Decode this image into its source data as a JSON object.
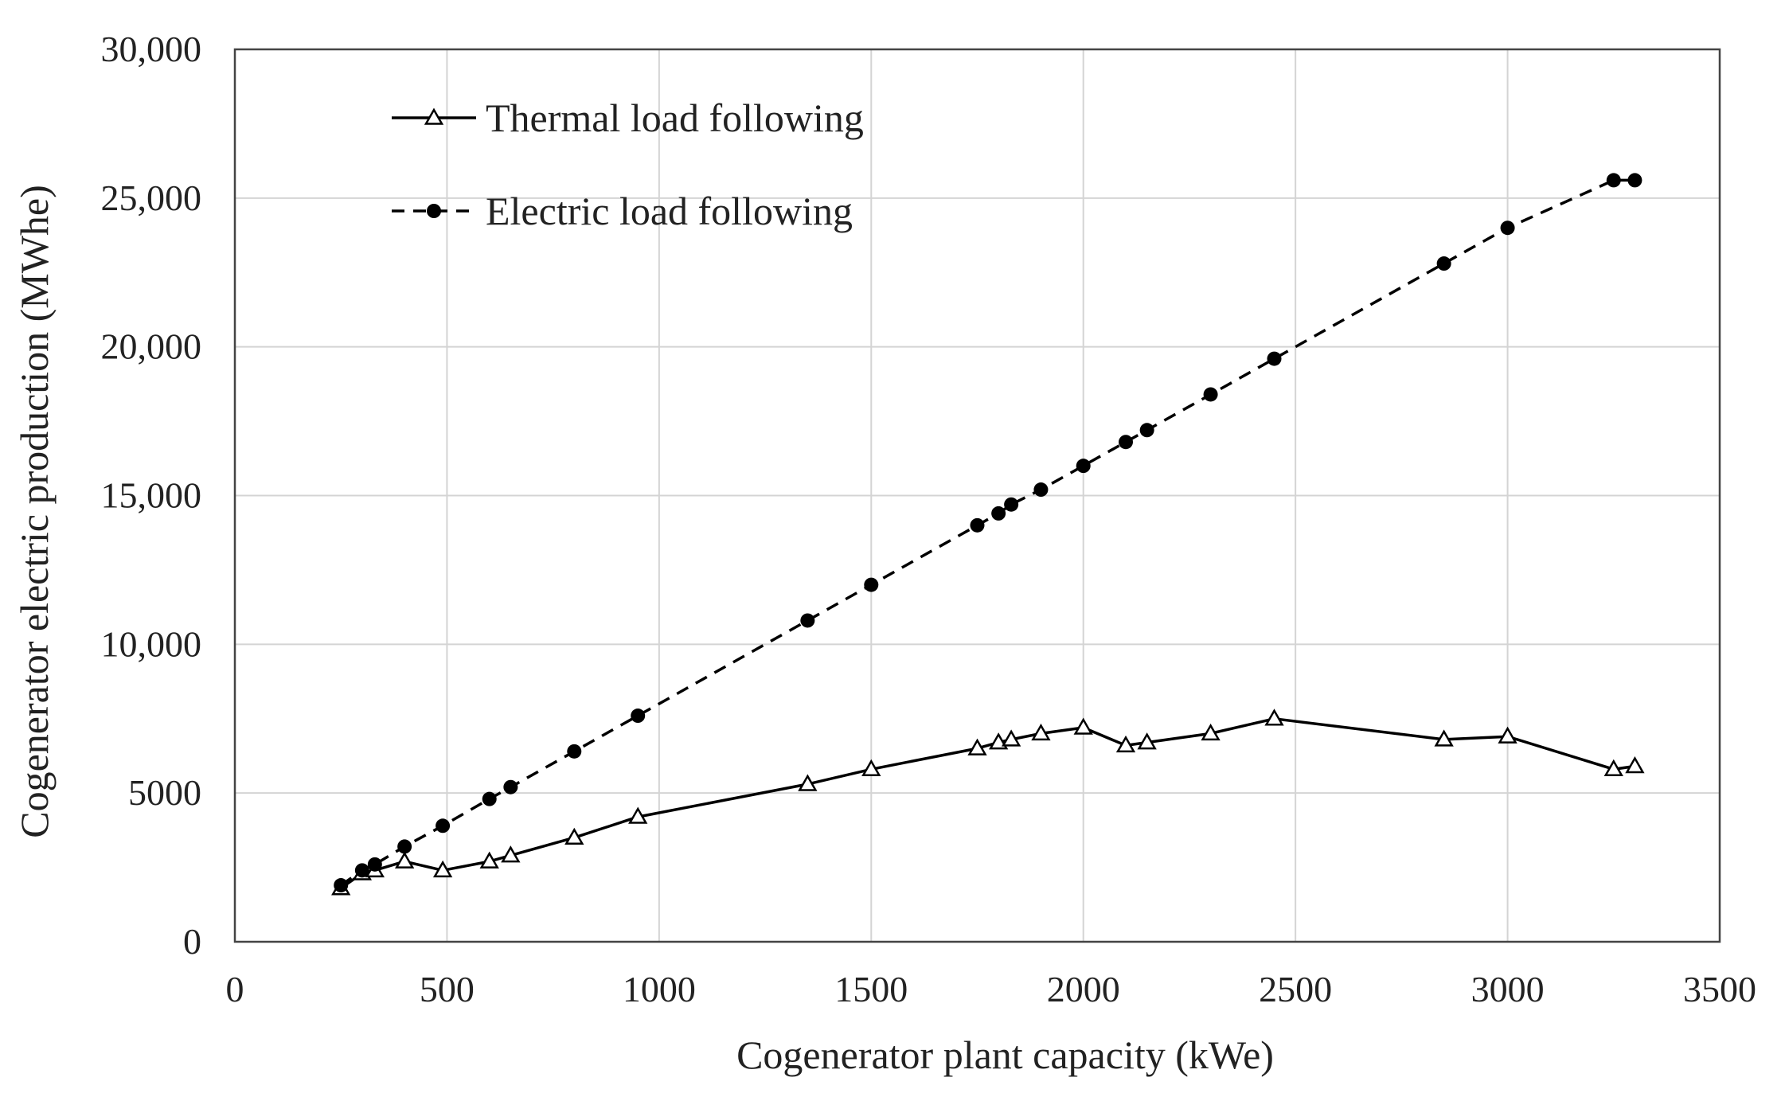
{
  "chart_data": {
    "type": "line",
    "title": "",
    "xlabel": "Cogenerator plant capacity (kWe)",
    "ylabel": "Cogenerator electric production (MWhe)",
    "xlim": [
      0,
      3500
    ],
    "ylim": [
      0,
      30000
    ],
    "grid": true,
    "legend_position": "top-left",
    "x_ticks": [
      0,
      500,
      1000,
      1500,
      2000,
      2500,
      3000,
      3500
    ],
    "x_tick_labels": [
      "0",
      "500",
      "1000",
      "1500",
      "2000",
      "2500",
      "3000",
      "3500"
    ],
    "y_ticks": [
      0,
      5000,
      10000,
      15000,
      20000,
      25000,
      30000
    ],
    "y_tick_labels": [
      "0",
      "5000",
      "10,000",
      "15,000",
      "20,000",
      "25,000",
      "30,000"
    ],
    "series": [
      {
        "name": "Thermal load following",
        "line_style": "solid",
        "marker": "open-triangle",
        "color": "#000000",
        "x": [
          250,
          300,
          330,
          400,
          490,
          600,
          650,
          800,
          950,
          1350,
          1500,
          1750,
          1800,
          1830,
          1900,
          2000,
          2100,
          2150,
          2300,
          2450,
          2850,
          3000,
          3250,
          3300
        ],
        "values": [
          1800,
          2300,
          2400,
          2700,
          2400,
          2700,
          2900,
          3500,
          4200,
          5300,
          5800,
          6500,
          6700,
          6800,
          7000,
          7200,
          6600,
          6700,
          7000,
          7500,
          6800,
          6900,
          5800,
          5900
        ]
      },
      {
        "name": "Electric load following",
        "line_style": "dashed",
        "marker": "filled-circle",
        "color": "#000000",
        "x": [
          250,
          300,
          330,
          400,
          490,
          600,
          650,
          800,
          950,
          1350,
          1500,
          1750,
          1800,
          1830,
          1900,
          2000,
          2100,
          2150,
          2300,
          2450,
          2850,
          3000,
          3250,
          3300
        ],
        "values": [
          1900,
          2400,
          2600,
          3200,
          3900,
          4800,
          5200,
          6400,
          7600,
          10800,
          12000,
          14000,
          14400,
          14700,
          15200,
          16000,
          16800,
          17200,
          18400,
          19600,
          22800,
          24000,
          25600,
          25600
        ]
      }
    ]
  }
}
